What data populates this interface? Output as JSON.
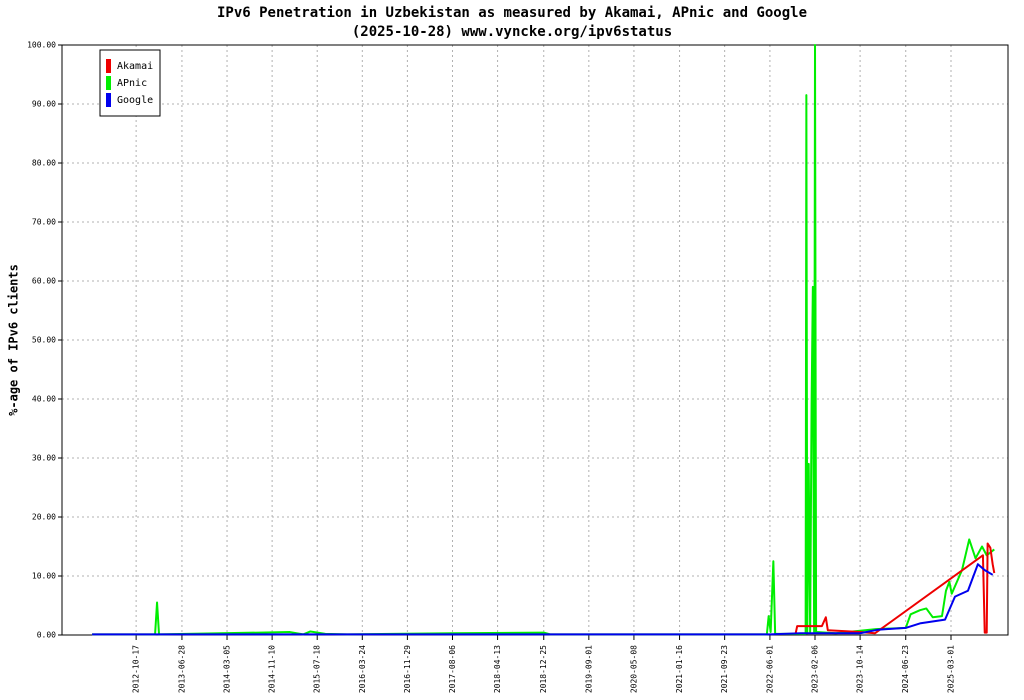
{
  "chart_data": {
    "type": "line",
    "title": "IPv6 Penetration in Uzbekistan as measured by Akamai, APnic and Google",
    "subtitle": "(2025-10-28) www.vyncke.org/ipv6status",
    "y_label": "%-age of IPv6 clients",
    "xlim": [
      "2011-09-02",
      "2026-01-11"
    ],
    "xticks": [
      "2012-10-17",
      "2013-06-28",
      "2014-03-05",
      "2014-11-10",
      "2015-07-18",
      "2016-03-24",
      "2016-11-29",
      "2017-08-06",
      "2018-04-13",
      "2018-12-25",
      "2019-09-01",
      "2020-05-08",
      "2021-01-16",
      "2021-09-23",
      "2022-06-01",
      "2023-02-06",
      "2023-10-14",
      "2024-06-23",
      "2025-03-01"
    ],
    "ylim": [
      0,
      100
    ],
    "yticks": [
      {
        "value": 0,
        "label": "0.00"
      },
      {
        "value": 10,
        "label": "10.00"
      },
      {
        "value": 20,
        "label": "20.00"
      },
      {
        "value": 30,
        "label": "30.00"
      },
      {
        "value": 40,
        "label": "40.00"
      },
      {
        "value": 50,
        "label": "50.00"
      },
      {
        "value": 60,
        "label": "60.00"
      },
      {
        "value": 70,
        "label": "70.00"
      },
      {
        "value": 80,
        "label": "80.00"
      },
      {
        "value": 90,
        "label": "90.00"
      },
      {
        "value": 100,
        "label": "100.00"
      }
    ],
    "grid": true,
    "legend": "upper left",
    "series": [
      {
        "name": "APnic",
        "color": "#00ee00",
        "x": [
          "2012-02-16",
          "2013-01-30",
          "2013-02-10",
          "2013-02-21",
          "2015-02-17",
          "2015-05-01",
          "2015-06-10",
          "2015-09-01",
          "2016-01-01",
          "2017-08-06",
          "2018-12-25",
          "2019-02-01",
          "2022-05-15",
          "2022-05-25",
          "2022-06-05",
          "2022-06-20",
          "2022-06-30",
          "2022-12-16",
          "2022-12-20",
          "2022-12-25",
          "2023-01-02",
          "2023-01-10",
          "2023-01-18",
          "2023-01-25",
          "2023-02-01",
          "2023-02-06",
          "2023-02-12",
          "2023-06-01",
          "2024-01-10",
          "2024-06-23",
          "2024-07-20",
          "2024-09-10",
          "2024-10-15",
          "2024-11-20",
          "2025-01-10",
          "2025-02-01",
          "2025-02-20",
          "2025-03-05",
          "2025-05-01",
          "2025-06-10",
          "2025-07-15",
          "2025-08-20",
          "2025-09-15",
          "2025-10-27"
        ],
        "values": [
          0.1,
          0.1,
          5.5,
          0.1,
          0.5,
          0.1,
          0.6,
          0.2,
          0.1,
          0.3,
          0.4,
          0.1,
          0.1,
          3.2,
          0.5,
          12.5,
          0.2,
          0.2,
          91.5,
          0.3,
          29,
          0.5,
          39,
          59,
          0.5,
          100,
          0.5,
          0.3,
          1.0,
          1.2,
          3.5,
          4.2,
          4.5,
          3.0,
          3.2,
          7.5,
          9,
          7,
          11,
          16.2,
          13,
          15,
          13.5,
          14.5
        ]
      },
      {
        "name": "Akamai",
        "color": "#ee0000",
        "x": [
          "2022-10-22",
          "2022-10-30",
          "2023-03-16",
          "2023-04-07",
          "2023-04-18",
          "2023-10-14",
          "2024-01-05",
          "2025-08-25",
          "2025-08-30",
          "2025-09-04",
          "2025-09-15",
          "2025-09-20",
          "2025-10-05",
          "2025-10-18",
          "2025-10-27"
        ],
        "values": [
          0.3,
          1.5,
          1.5,
          3,
          0.8,
          0.5,
          0.3,
          13.5,
          7,
          0.4,
          0.4,
          15.5,
          14.8,
          12,
          10.5
        ]
      },
      {
        "name": "Google",
        "color": "#0000ee",
        "x": [
          "2012-02-16",
          "2022-06-01",
          "2022-11-19",
          "2023-10-14",
          "2024-01-21",
          "2024-06-23",
          "2024-09-14",
          "2025-01-27",
          "2025-03-23",
          "2025-06-03",
          "2025-07-28",
          "2025-09-04",
          "2025-10-18"
        ],
        "values": [
          0.1,
          0.1,
          0.3,
          0.3,
          0.9,
          1.2,
          2.0,
          2.6,
          6.5,
          7.5,
          12,
          11,
          10.2
        ]
      }
    ]
  }
}
